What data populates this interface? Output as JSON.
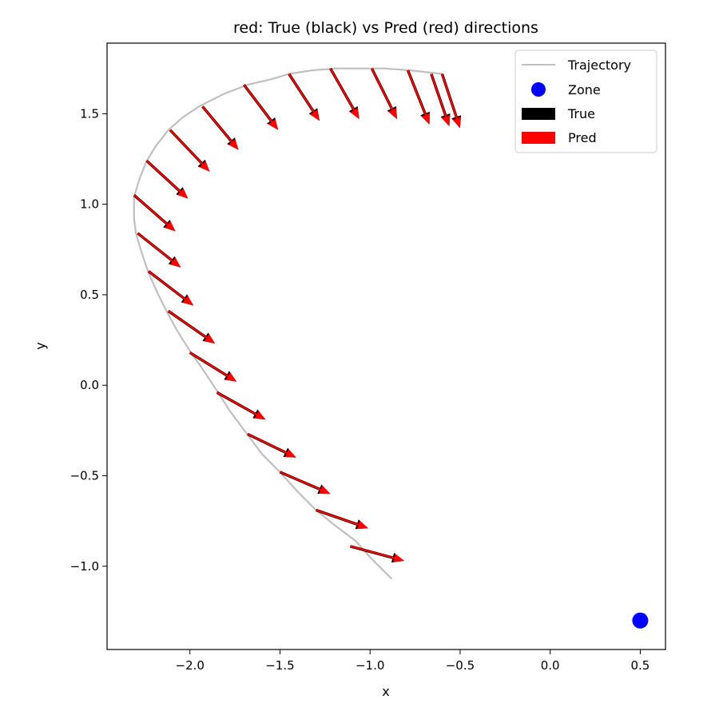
{
  "chart_data": {
    "type": "quiver",
    "title": "red: True (black) vs Pred (red) directions",
    "xlabel": "x",
    "ylabel": "y",
    "xlim": [
      -2.46,
      0.64
    ],
    "ylim": [
      -1.46,
      1.89
    ],
    "xticks": [
      -2.0,
      -1.5,
      -1.0,
      -0.5,
      0.0,
      0.5
    ],
    "xtick_labels": [
      "−2.0",
      "−1.5",
      "−1.0",
      "−0.5",
      "0.0",
      "0.5"
    ],
    "yticks": [
      -1.0,
      -0.5,
      0.0,
      0.5,
      1.0,
      1.5
    ],
    "ytick_labels": [
      "−1.0",
      "−0.5",
      "0.0",
      "0.5",
      "1.0",
      "1.5"
    ],
    "grid": false,
    "legend": {
      "placement": "top-right",
      "entries": [
        {
          "label": "Trajectory",
          "kind": "line",
          "color": "#bfbfbf"
        },
        {
          "label": "Zone",
          "kind": "marker",
          "color": "#0000ff"
        },
        {
          "label": "True",
          "kind": "patch",
          "color": "#000000"
        },
        {
          "label": "Pred",
          "kind": "patch",
          "color": "#ff0000"
        }
      ]
    },
    "colors": {
      "trajectory": "#bfbfbf",
      "zone": "#0000ff",
      "true": "#000000",
      "pred": "#ff0000"
    },
    "trajectory": [
      [
        -0.88,
        -1.07
      ],
      [
        -0.93,
        -1.02
      ],
      [
        -1.0,
        -0.95
      ],
      [
        -1.08,
        -0.86
      ],
      [
        -1.2,
        -0.77
      ],
      [
        -1.3,
        -0.69
      ],
      [
        -1.4,
        -0.59
      ],
      [
        -1.5,
        -0.48
      ],
      [
        -1.6,
        -0.38
      ],
      [
        -1.69,
        -0.26
      ],
      [
        -1.78,
        -0.14
      ],
      [
        -1.85,
        -0.03
      ],
      [
        -1.93,
        0.09
      ],
      [
        -2.0,
        0.19
      ],
      [
        -2.07,
        0.3
      ],
      [
        -2.13,
        0.41
      ],
      [
        -2.18,
        0.51
      ],
      [
        -2.23,
        0.62
      ],
      [
        -2.27,
        0.74
      ],
      [
        -2.3,
        0.84
      ],
      [
        -2.31,
        0.92
      ],
      [
        -2.31,
        1.04
      ],
      [
        -2.28,
        1.14
      ],
      [
        -2.24,
        1.24
      ],
      [
        -2.19,
        1.32
      ],
      [
        -2.12,
        1.41
      ],
      [
        -2.04,
        1.48
      ],
      [
        -1.95,
        1.54
      ],
      [
        -1.81,
        1.61
      ],
      [
        -1.68,
        1.66
      ],
      [
        -1.55,
        1.69
      ],
      [
        -1.45,
        1.72
      ],
      [
        -1.32,
        1.74
      ],
      [
        -1.19,
        1.75
      ],
      [
        -1.05,
        1.75
      ],
      [
        -0.92,
        1.75
      ],
      [
        -0.78,
        1.74
      ],
      [
        -0.6,
        1.72
      ]
    ],
    "zone": {
      "x": 0.5,
      "y": -1.3
    },
    "arrows": [
      {
        "x": -1.11,
        "y": -0.89,
        "true_dx": 0.3,
        "true_dy": -0.08,
        "pred_dx": 0.3,
        "pred_dy": -0.08
      },
      {
        "x": -1.3,
        "y": -0.69,
        "true_dx": 0.29,
        "true_dy": -0.1,
        "pred_dx": 0.29,
        "pred_dy": -0.1
      },
      {
        "x": -1.5,
        "y": -0.48,
        "true_dx": 0.28,
        "true_dy": -0.12,
        "pred_dx": 0.28,
        "pred_dy": -0.12
      },
      {
        "x": -1.68,
        "y": -0.27,
        "true_dx": 0.27,
        "true_dy": -0.13,
        "pred_dx": 0.27,
        "pred_dy": -0.13
      },
      {
        "x": -1.85,
        "y": -0.04,
        "true_dx": 0.27,
        "true_dy": -0.15,
        "pred_dx": 0.27,
        "pred_dy": -0.15
      },
      {
        "x": -2.0,
        "y": 0.18,
        "true_dx": 0.26,
        "true_dy": -0.16,
        "pred_dx": 0.26,
        "pred_dy": -0.16
      },
      {
        "x": -2.12,
        "y": 0.41,
        "true_dx": 0.26,
        "true_dy": -0.18,
        "pred_dx": 0.26,
        "pred_dy": -0.18
      },
      {
        "x": -2.23,
        "y": 0.63,
        "true_dx": 0.25,
        "true_dy": -0.19,
        "pred_dx": 0.25,
        "pred_dy": -0.19
      },
      {
        "x": -2.29,
        "y": 0.84,
        "true_dx": 0.24,
        "true_dy": -0.19,
        "pred_dx": 0.24,
        "pred_dy": -0.19
      },
      {
        "x": -2.31,
        "y": 1.05,
        "true_dx": 0.23,
        "true_dy": -0.2,
        "pred_dx": 0.23,
        "pred_dy": -0.2
      },
      {
        "x": -2.24,
        "y": 1.24,
        "true_dx": 0.23,
        "true_dy": -0.21,
        "pred_dx": 0.23,
        "pred_dy": -0.21
      },
      {
        "x": -2.11,
        "y": 1.41,
        "true_dx": 0.22,
        "true_dy": -0.23,
        "pred_dx": 0.22,
        "pred_dy": -0.23
      },
      {
        "x": -1.93,
        "y": 1.54,
        "true_dx": 0.2,
        "true_dy": -0.24,
        "pred_dx": 0.2,
        "pred_dy": -0.24
      },
      {
        "x": -1.7,
        "y": 1.66,
        "true_dx": 0.19,
        "true_dy": -0.25,
        "pred_dx": 0.19,
        "pred_dy": -0.25
      },
      {
        "x": -1.45,
        "y": 1.72,
        "true_dx": 0.17,
        "true_dy": -0.26,
        "pred_dx": 0.17,
        "pred_dy": -0.26
      },
      {
        "x": -1.22,
        "y": 1.75,
        "true_dx": 0.16,
        "true_dy": -0.28,
        "pred_dx": 0.16,
        "pred_dy": -0.28
      },
      {
        "x": -0.99,
        "y": 1.75,
        "true_dx": 0.14,
        "true_dy": -0.28,
        "pred_dx": 0.14,
        "pred_dy": -0.28
      },
      {
        "x": -0.79,
        "y": 1.74,
        "true_dx": 0.12,
        "true_dy": -0.3,
        "pred_dx": 0.12,
        "pred_dy": -0.3
      },
      {
        "x": -0.66,
        "y": 1.72,
        "true_dx": 0.1,
        "true_dy": -0.29,
        "pred_dx": 0.1,
        "pred_dy": -0.29
      },
      {
        "x": -0.6,
        "y": 1.72,
        "true_dx": 0.1,
        "true_dy": -0.3,
        "pred_dx": 0.1,
        "pred_dy": -0.3
      }
    ]
  }
}
